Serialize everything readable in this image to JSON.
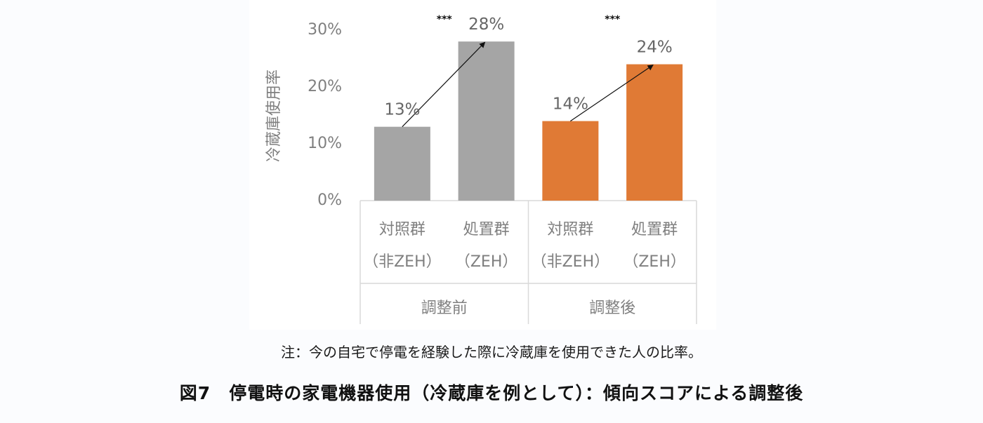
{
  "chart_data": {
    "type": "bar",
    "ylabel": "冷蔵庫使用率",
    "ylim": [
      0,
      30
    ],
    "yticks": [
      "0%",
      "10%",
      "20%",
      "30%"
    ],
    "ytick_values": [
      0,
      10,
      20,
      30
    ],
    "grid": false,
    "groups": [
      {
        "label": "調整前",
        "categories": [
          "対照群\n（非ZEH）",
          "処置群\n（ZEH）"
        ]
      },
      {
        "label": "調整後",
        "categories": [
          "対照群\n（非ZEH）",
          "処置群\n（ZEH）"
        ]
      }
    ],
    "bars": [
      {
        "group": "調整前",
        "category_line1": "対照群",
        "category_line2": "（非ZEH）",
        "value": 13,
        "label": "13%",
        "color": "#a5a5a5"
      },
      {
        "group": "調整前",
        "category_line1": "処置群",
        "category_line2": "（ZEH）",
        "value": 28,
        "label": "28%",
        "color": "#a5a5a5"
      },
      {
        "group": "調整後",
        "category_line1": "対照群",
        "category_line2": "（非ZEH）",
        "value": 14,
        "label": "14%",
        "color": "#e07a35"
      },
      {
        "group": "調整後",
        "category_line1": "処置群",
        "category_line2": "（ZEH）",
        "value": 24,
        "label": "24%",
        "color": "#e07a35"
      }
    ],
    "significance": [
      {
        "group": "調整前",
        "label": "***"
      },
      {
        "group": "調整後",
        "label": "***"
      }
    ]
  },
  "note": "注：今の自宅で停電を経験した際に冷蔵庫を使用できた人の比率。",
  "caption": "図7　停電時の家電機器使用（冷蔵庫を例として）：傾向スコアによる調整後"
}
